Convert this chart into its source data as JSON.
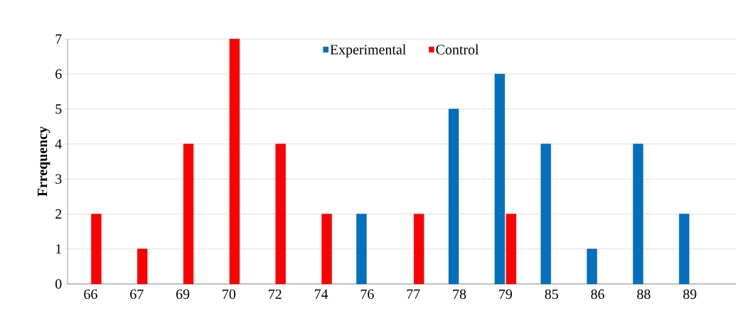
{
  "chart_data": {
    "type": "bar",
    "ylabel": "Frrequency",
    "categories": [
      "66",
      "67",
      "69",
      "70",
      "72",
      "74",
      "76",
      "77",
      "78",
      "79",
      "85",
      "86",
      "88",
      "89"
    ],
    "series": [
      {
        "name": "Experimental",
        "color": "#0070c0",
        "values": [
          null,
          null,
          null,
          null,
          null,
          null,
          2,
          null,
          5,
          6,
          4,
          1,
          4,
          2
        ]
      },
      {
        "name": "Control",
        "color": "#ff0000",
        "values": [
          2,
          1,
          4,
          7,
          4,
          2,
          null,
          2,
          null,
          2,
          null,
          null,
          null,
          null
        ]
      }
    ],
    "ylim": [
      0,
      7
    ],
    "yticks": [
      0,
      1,
      2,
      3,
      4,
      5,
      6,
      7
    ],
    "grid": "y",
    "legend": "top"
  }
}
